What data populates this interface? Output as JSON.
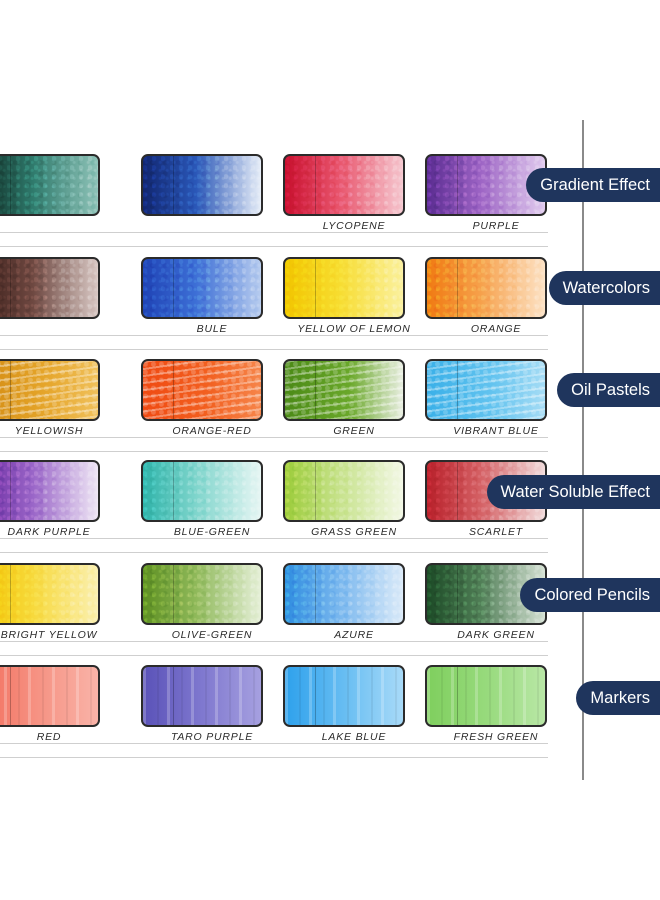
{
  "rows": [
    {
      "category": "Gradient Effect",
      "style": "gradient",
      "swatches": [
        {
          "label": "",
          "colors": [
            "#0e2a23",
            "#2f7a6c",
            "#8ec3b8"
          ]
        },
        {
          "label": "",
          "colors": [
            "#11266f",
            "#2a57b8",
            "#e7eef8"
          ]
        },
        {
          "label": "LYCOPENE",
          "colors": [
            "#c8102e",
            "#e8536b",
            "#f6c9d1"
          ]
        },
        {
          "label": "PURPLE",
          "colors": [
            "#5a2c91",
            "#9c63c4",
            "#e2cdef"
          ]
        }
      ]
    },
    {
      "category": "Watercolors",
      "style": "gradient",
      "swatches": [
        {
          "label": "",
          "colors": [
            "#3c1f1a",
            "#6e4841",
            "#d9c8c4"
          ]
        },
        {
          "label": "BULE",
          "colors": [
            "#1f43b5",
            "#3d6fd6",
            "#b7ccef"
          ]
        },
        {
          "label": "YELLOW OF LEMON",
          "colors": [
            "#f2c500",
            "#f7dc2e",
            "#fbf1a0"
          ]
        },
        {
          "label": "ORANGE",
          "colors": [
            "#f07a12",
            "#f6a04a",
            "#fde3c6"
          ]
        }
      ]
    },
    {
      "category": "Oil Pastels",
      "style": "crayon",
      "swatches": [
        {
          "label": "YELLOWISH",
          "colors": [
            "#d38b12",
            "#e5a52a",
            "#f0c05a"
          ]
        },
        {
          "label": "ORANGE-RED",
          "colors": [
            "#f04a12",
            "#f26020",
            "#f6854a"
          ]
        },
        {
          "label": "GREEN",
          "colors": [
            "#4b8a16",
            "#6aa82a",
            "#e8eee0"
          ]
        },
        {
          "label": "VIBRANT BLUE",
          "colors": [
            "#3ab0e8",
            "#62c3ef",
            "#a5dcf5"
          ]
        }
      ]
    },
    {
      "category": "Water Soluble Effect",
      "style": "gradient",
      "swatches": [
        {
          "label": "DARK PURPLE",
          "colors": [
            "#6a2aa0",
            "#9a66c8",
            "#efe6f5"
          ]
        },
        {
          "label": "BLUE-GREEN",
          "colors": [
            "#2fb3a9",
            "#7fd5cc",
            "#e7f6f4"
          ]
        },
        {
          "label": "GRASS GREEN",
          "colors": [
            "#9ccc3a",
            "#c6e28a",
            "#f3f8e6"
          ]
        },
        {
          "label": "SCARLET",
          "colors": [
            "#b8202a",
            "#d46064",
            "#f2dcdc"
          ]
        }
      ]
    },
    {
      "category": "Colored Pencils",
      "style": "gradient",
      "swatches": [
        {
          "label": "BRIGHT YELLOW",
          "colors": [
            "#f3c400",
            "#f7d93c",
            "#fbf0b0"
          ]
        },
        {
          "label": "OLIVE-GREEN",
          "colors": [
            "#5d8f22",
            "#8fb95a",
            "#e6f0d8"
          ]
        },
        {
          "label": "AZURE",
          "colors": [
            "#2f8de0",
            "#77b6ee",
            "#dcebf9"
          ]
        },
        {
          "label": "DARK GREEN",
          "colors": [
            "#1c4a26",
            "#4f7d55",
            "#d7e3d6"
          ]
        }
      ]
    },
    {
      "category": "Markers",
      "style": "marker",
      "swatches": [
        {
          "label": "RED",
          "colors": [
            "#f2705e",
            "#f69384",
            "#f9b3a8"
          ]
        },
        {
          "label": "TARO PURPLE",
          "colors": [
            "#5a52b8",
            "#7f78cf",
            "#a6a0e0"
          ]
        },
        {
          "label": "LAKE BLUE",
          "colors": [
            "#2ea1ec",
            "#67bdf2",
            "#a8daf8"
          ]
        },
        {
          "label": "FRESH GREEN",
          "colors": [
            "#7fcf5e",
            "#97da7c",
            "#b9e7a6"
          ]
        }
      ]
    }
  ],
  "theme": {
    "pill_color": "#1f355d",
    "pill_text": "#ffffff",
    "border": "#2b2b2b"
  }
}
